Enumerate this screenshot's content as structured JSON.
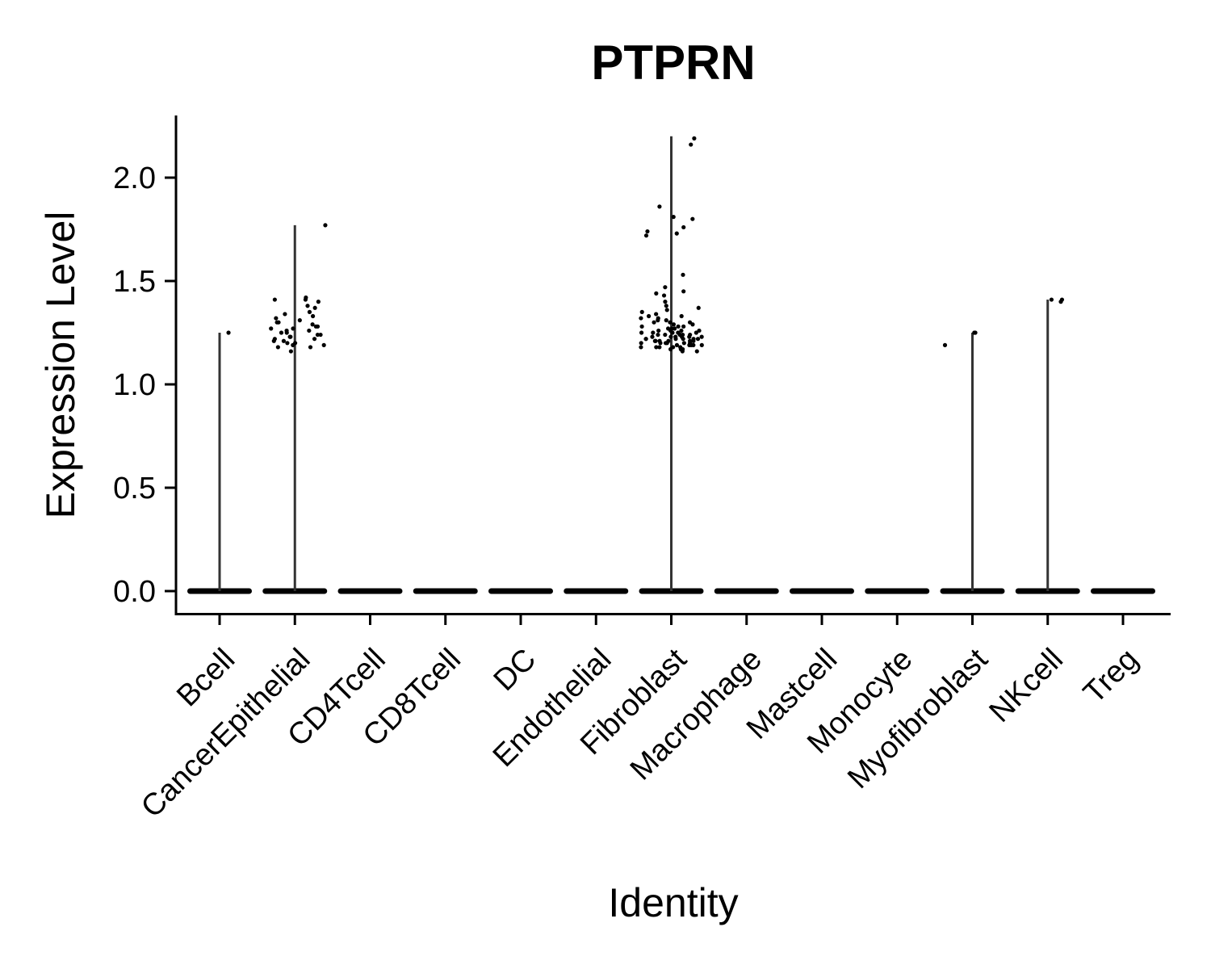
{
  "chart_data": {
    "type": "violin",
    "title": "PTPRN",
    "xlabel": "Identity",
    "ylabel": "Expression Level",
    "ylim": [
      -0.11,
      2.3
    ],
    "yticks": [
      "0.0",
      "0.5",
      "1.0",
      "1.5",
      "2.0"
    ],
    "ytick_values": [
      0,
      0.5,
      1.0,
      1.5,
      2.0
    ],
    "grid": false,
    "legend": "none",
    "point_color": "#000000",
    "violin_color": "#333333",
    "categories": [
      "Bcell",
      "CancerEpithelial",
      "CD4Tcell",
      "CD8Tcell",
      "DC",
      "Endothelial",
      "Fibroblast",
      "Macrophage",
      "Mastcell",
      "Monocyte",
      "Myofibroblast",
      "NKcell",
      "Treg"
    ],
    "max_values": [
      1.25,
      1.77,
      0,
      0,
      0,
      0,
      2.2,
      0,
      0,
      0,
      1.25,
      1.41,
      0
    ],
    "nonzero_points": [
      [
        1.25
      ],
      [
        1.77,
        1.42,
        1.41,
        1.41,
        1.4,
        1.38,
        1.37,
        1.35,
        1.34,
        1.33,
        1.32,
        1.31,
        1.3,
        1.3,
        1.29,
        1.28,
        1.28,
        1.27,
        1.27,
        1.26,
        1.26,
        1.25,
        1.25,
        1.24,
        1.24,
        1.23,
        1.23,
        1.22,
        1.22,
        1.21,
        1.21,
        1.2,
        1.2,
        1.19,
        1.19,
        1.18,
        1.18,
        1.16
      ],
      [],
      [],
      [],
      [],
      [
        2.19,
        2.16,
        1.86,
        1.81,
        1.8,
        1.76,
        1.74,
        1.73,
        1.72,
        1.53,
        1.47,
        1.45,
        1.44,
        1.43,
        1.4,
        1.38,
        1.37,
        1.36,
        1.35,
        1.34,
        1.33,
        1.33,
        1.32,
        1.32,
        1.31,
        1.31,
        1.3,
        1.3,
        1.3,
        1.29,
        1.29,
        1.28,
        1.28,
        1.28,
        1.27,
        1.27,
        1.27,
        1.26,
        1.26,
        1.26,
        1.26,
        1.25,
        1.25,
        1.25,
        1.25,
        1.25,
        1.24,
        1.24,
        1.24,
        1.24,
        1.24,
        1.24,
        1.23,
        1.23,
        1.23,
        1.23,
        1.23,
        1.23,
        1.22,
        1.22,
        1.22,
        1.22,
        1.22,
        1.22,
        1.21,
        1.21,
        1.21,
        1.21,
        1.21,
        1.21,
        1.2,
        1.2,
        1.2,
        1.2,
        1.2,
        1.2,
        1.19,
        1.19,
        1.19,
        1.19,
        1.19,
        1.18,
        1.18,
        1.18,
        1.18,
        1.18,
        1.17,
        1.17,
        1.17,
        1.17,
        1.16,
        1.16
      ],
      [],
      [],
      [],
      [
        1.25,
        1.25,
        1.19
      ],
      [
        1.41,
        1.41,
        1.4
      ],
      []
    ]
  }
}
